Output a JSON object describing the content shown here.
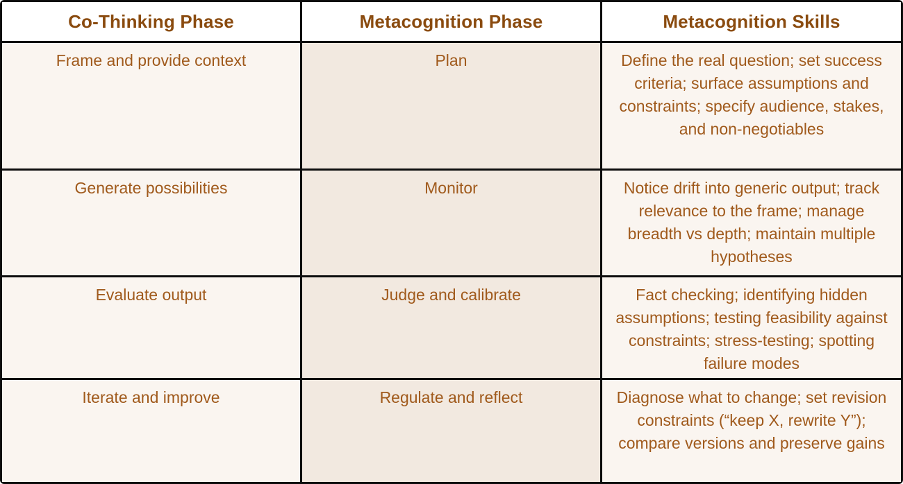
{
  "colors": {
    "border": "#0d0d0d",
    "header_bg": "#ffffff",
    "light_cell_bg": "#faf5f0",
    "mid_cell_bg": "#f2e9e0",
    "header_text": "#8a4b0f",
    "body_text": "#a05a1c"
  },
  "table": {
    "headers": {
      "co_thinking_phase": "Co-Thinking Phase",
      "metacognition_phase": "Metacognition Phase",
      "metacognition_skills": "Metacognition Skills"
    },
    "rows": [
      {
        "phase": "Frame and provide context",
        "metacognition_phase": "Plan",
        "skills": "Define the real question; set success criteria; surface assumptions and constraints; specify audience, stakes, and non-negotiables"
      },
      {
        "phase": "Generate possibilities",
        "metacognition_phase": "Monitor",
        "skills": "Notice drift into generic output; track relevance to the frame; manage breadth vs depth; maintain multiple hypotheses"
      },
      {
        "phase": "Evaluate output",
        "metacognition_phase": "Judge and calibrate",
        "skills": "Fact checking; identifying hidden assumptions; testing feasibility against constraints; stress-testing; spotting failure modes"
      },
      {
        "phase": "Iterate and improve",
        "metacognition_phase": "Regulate and reflect",
        "skills": "Diagnose what to change; set revision constraints (“keep X, rewrite Y”); compare versions and preserve gains"
      }
    ]
  }
}
